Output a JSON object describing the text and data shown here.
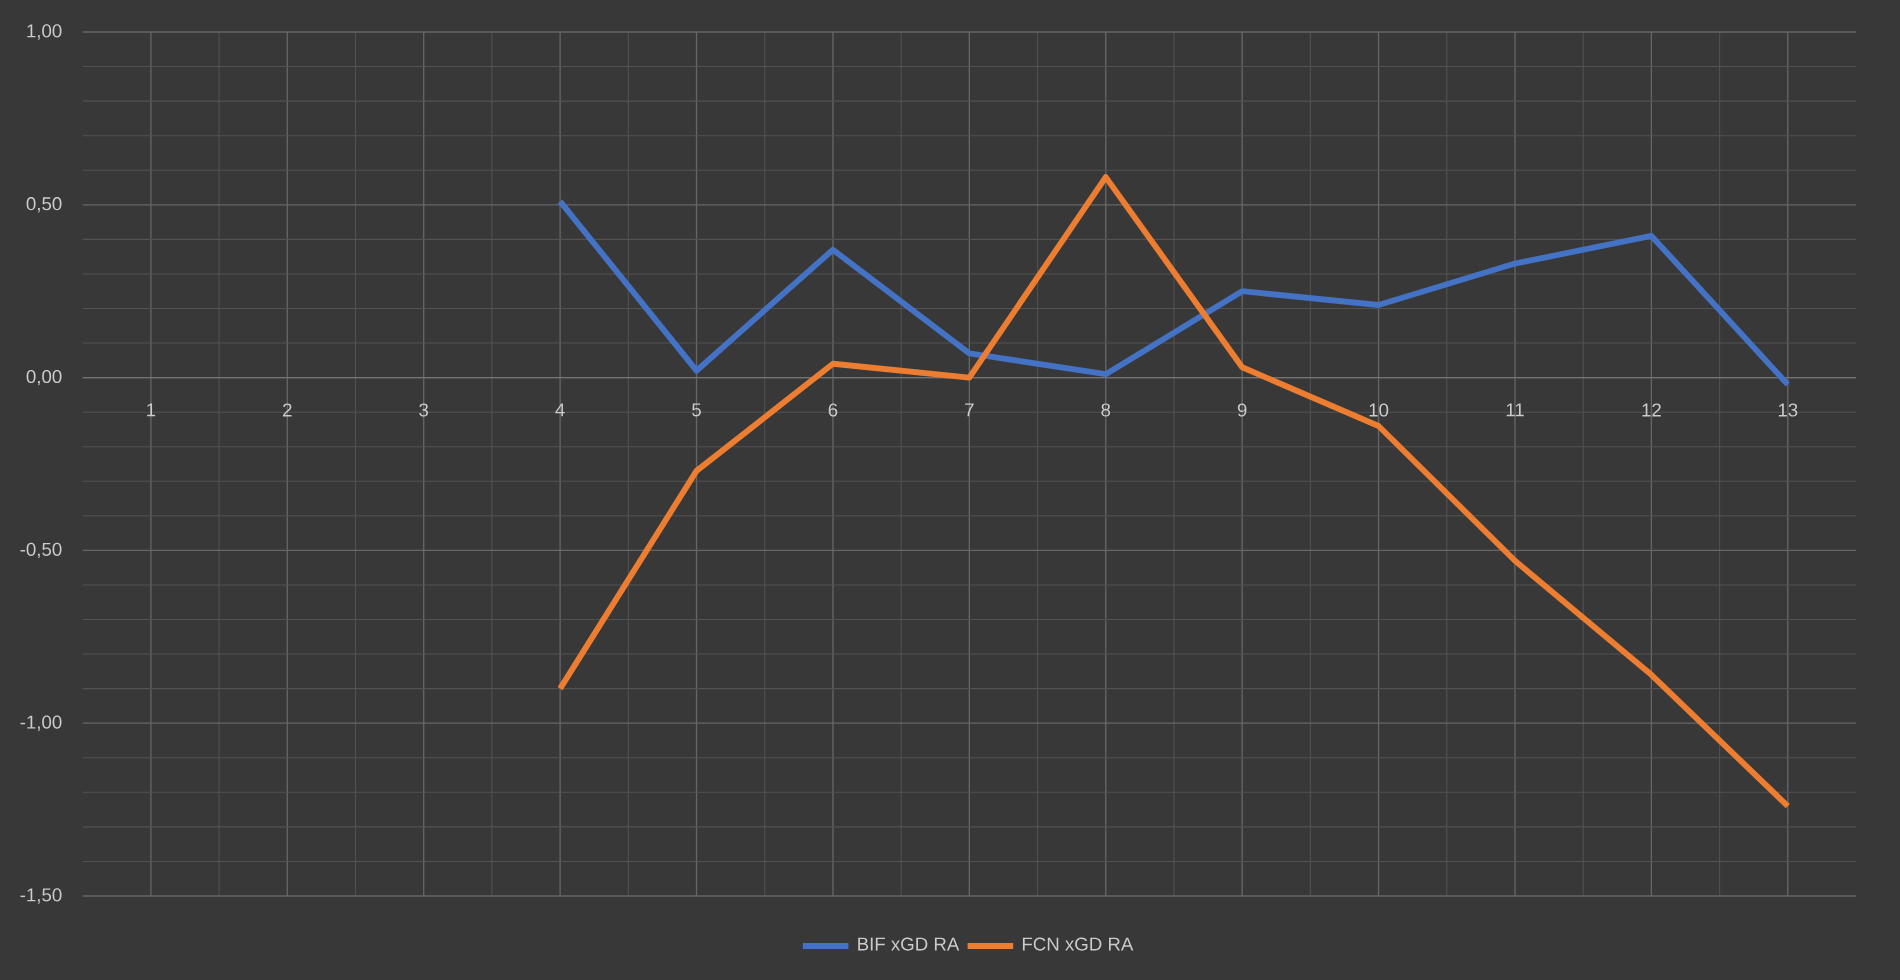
{
  "chart_data": {
    "type": "line",
    "categories": [
      "1",
      "2",
      "3",
      "4",
      "5",
      "6",
      "7",
      "8",
      "9",
      "10",
      "11",
      "12",
      "13"
    ],
    "series": [
      {
        "name": "BIF xGD RA",
        "color": "#4472c4",
        "values": [
          null,
          null,
          null,
          0.51,
          0.02,
          0.37,
          0.07,
          0.01,
          0.25,
          0.21,
          0.33,
          0.41,
          -0.02
        ]
      },
      {
        "name": "FCN xGD RA",
        "color": "#ed7d31",
        "values": [
          null,
          null,
          null,
          -0.9,
          -0.27,
          0.04,
          0.0,
          0.58,
          0.03,
          -0.14,
          -0.53,
          -0.86,
          -1.24
        ]
      }
    ],
    "ylim": [
      -1.5,
      1.0
    ],
    "yticks": [
      {
        "value": -1.5,
        "label": "-1,50"
      },
      {
        "value": -1.0,
        "label": "-1,00"
      },
      {
        "value": -0.5,
        "label": "-0,50"
      },
      {
        "value": 0.0,
        "label": "0,00"
      },
      {
        "value": 0.5,
        "label": "0,50"
      },
      {
        "value": 1.0,
        "label": "1,00"
      }
    ],
    "grid": true,
    "legend": "bottom",
    "marker": "none",
    "line_style": "solid"
  }
}
